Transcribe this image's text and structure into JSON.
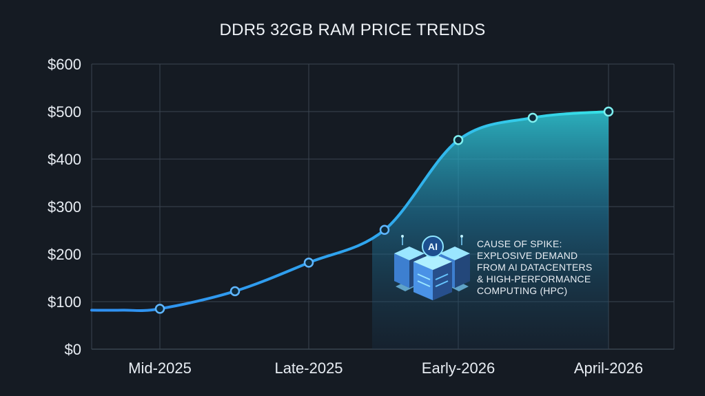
{
  "chart_data": {
    "type": "area",
    "title": "DDR5 32GB RAM PRICE TRENDS",
    "xlabel": "",
    "ylabel": "",
    "x_tick_labels": [
      "Mid-2025",
      "Late-2025",
      "Early-2026",
      "April-2026"
    ],
    "y_tick_labels": [
      "$0",
      "$100",
      "$200",
      "$300",
      "$400",
      "$500",
      "$600"
    ],
    "ylim": [
      0,
      600
    ],
    "grid": true,
    "legend": "none",
    "series": [
      {
        "points": [
          {
            "x": "Mid-2025",
            "y": 85
          },
          {
            "x": "Between Mid-2025 and Late-2025",
            "y": 122
          },
          {
            "x": "Late-2025",
            "y": 182
          },
          {
            "x": "Between Late-2025 and Early-2026",
            "y": 251
          },
          {
            "x": "Early-2026",
            "y": 440
          },
          {
            "x": "Between Early-2026 and April-2026",
            "y": 487
          },
          {
            "x": "April-2026",
            "y": 500
          }
        ],
        "line_start_value": 82
      }
    ],
    "colors": {
      "background": "#151b23",
      "line_start": "#2f8ff0",
      "line_end": "#37e3e6",
      "area_fill": "#2fc8d6",
      "grid": "#3a4450"
    },
    "annotation": {
      "icon": "ai-datacenter-servers-icon",
      "icon_badge": "AI",
      "lines": [
        "CAUSE OF SPIKE:",
        "EXPLOSIVE DEMAND",
        "FROM AI DATACENTERS",
        "& HIGH-PERFORMANCE",
        "COMPUTING (HPC)"
      ]
    }
  }
}
